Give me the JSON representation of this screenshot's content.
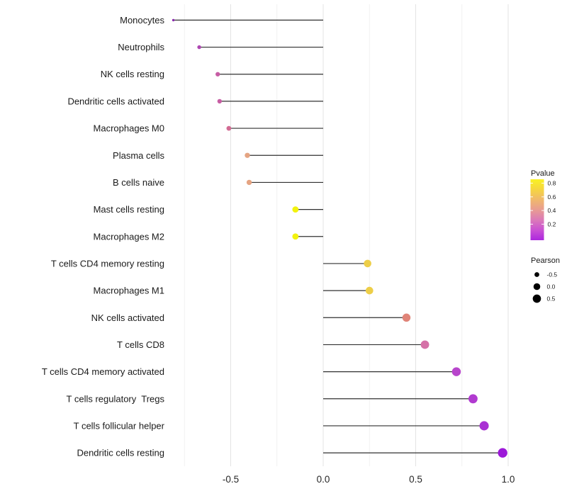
{
  "chart_data": {
    "type": "lollipop",
    "orientation": "horizontal",
    "title": "",
    "xlabel": "",
    "ylabel": "",
    "background": "#ffffff",
    "x_axis": {
      "range": [
        -0.89,
        1.06
      ],
      "major_ticks": [
        {
          "value": -0.5,
          "label": "-0.5"
        },
        {
          "value": 0.0,
          "label": "0.0"
        },
        {
          "value": 0.5,
          "label": "0.5"
        },
        {
          "value": 1.0,
          "label": "1.0"
        }
      ],
      "minor_gridlines": [
        -0.75,
        -0.25,
        0.25,
        0.75
      ],
      "grid": "vertical-only",
      "major_grid_color": "#e3e3e3",
      "minor_grid_color": "#f1f1f1"
    },
    "stem_color": "#303030",
    "points": [
      {
        "category": "Monocytes",
        "pearson": -0.81,
        "pvalue_approx": 0.05,
        "color": "#8a28ae"
      },
      {
        "category": "Neutrophils",
        "pearson": -0.67,
        "pvalue_approx": 0.18,
        "color": "#ae47b2"
      },
      {
        "category": "NK cells resting",
        "pearson": -0.57,
        "pvalue_approx": 0.28,
        "color": "#c75da4"
      },
      {
        "category": "Dendritic cells activated",
        "pearson": -0.56,
        "pvalue_approx": 0.28,
        "color": "#c75da3"
      },
      {
        "category": "Macrophages M0",
        "pearson": -0.51,
        "pvalue_approx": 0.33,
        "color": "#d26b93"
      },
      {
        "category": "Plasma cells",
        "pearson": -0.41,
        "pvalue_approx": 0.55,
        "color": "#e5a482"
      },
      {
        "category": "B cells naive",
        "pearson": -0.4,
        "pvalue_approx": 0.55,
        "color": "#e5a482"
      },
      {
        "category": "Mast cells resting",
        "pearson": -0.15,
        "pvalue_approx": 0.82,
        "color": "#f2f20e"
      },
      {
        "category": "Macrophages M2",
        "pearson": -0.15,
        "pvalue_approx": 0.82,
        "color": "#f2f20e"
      },
      {
        "category": "T cells CD4 memory resting",
        "pearson": 0.24,
        "pvalue_approx": 0.72,
        "color": "#edce48"
      },
      {
        "category": "Macrophages M1",
        "pearson": 0.25,
        "pvalue_approx": 0.72,
        "color": "#edce48"
      },
      {
        "category": "NK cells activated",
        "pearson": 0.45,
        "pvalue_approx": 0.5,
        "color": "#e08478"
      },
      {
        "category": "T cells CD8",
        "pearson": 0.55,
        "pvalue_approx": 0.38,
        "color": "#d571a7"
      },
      {
        "category": "T cells CD4 memory activated",
        "pearson": 0.72,
        "pvalue_approx": 0.15,
        "color": "#b845cc"
      },
      {
        "category": "T cells regulatory  Tregs",
        "pearson": 0.81,
        "pvalue_approx": 0.12,
        "color": "#b13ad0"
      },
      {
        "category": "T cells follicular helper",
        "pearson": 0.87,
        "pvalue_approx": 0.1,
        "color": "#a930d3"
      },
      {
        "category": "Dendritic cells resting",
        "pearson": 0.97,
        "pvalue_approx": 0.04,
        "color": "#9c18d8"
      }
    ],
    "legends": {
      "pvalue": {
        "title": "Pvalue",
        "tick_labels": [
          "0.8",
          "0.6",
          "0.4",
          "0.2"
        ],
        "gradient_stops": [
          {
            "offset": 0.0,
            "color": "#f9f224"
          },
          {
            "offset": 0.15,
            "color": "#f6d83c"
          },
          {
            "offset": 0.33,
            "color": "#f0b96b"
          },
          {
            "offset": 0.5,
            "color": "#e89c92"
          },
          {
            "offset": 0.67,
            "color": "#db79b9"
          },
          {
            "offset": 0.84,
            "color": "#c94fd4"
          },
          {
            "offset": 1.0,
            "color": "#ac27de"
          }
        ]
      },
      "pearson": {
        "title": "Pearson",
        "items": [
          {
            "label": "-0.5",
            "value": -0.5
          },
          {
            "label": "0.0",
            "value": 0.0
          },
          {
            "label": "0.5",
            "value": 0.5
          }
        ],
        "dot_color": "#000000"
      }
    }
  }
}
